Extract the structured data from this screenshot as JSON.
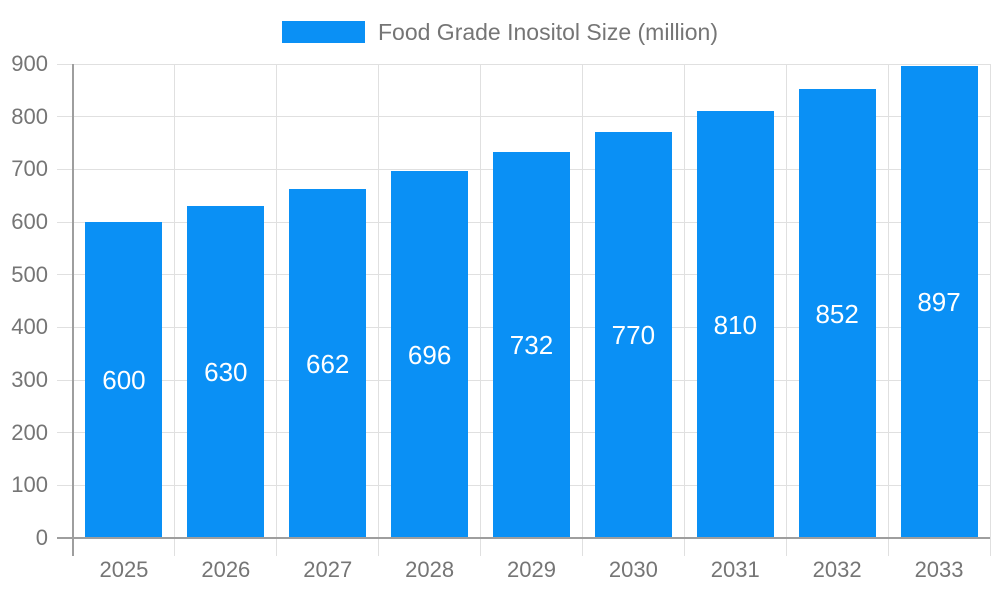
{
  "chart_data": {
    "type": "bar",
    "title": "",
    "legend_label": "Food Grade Inositol Size (million)",
    "legend_position": "top",
    "categories": [
      "2025",
      "2026",
      "2027",
      "2028",
      "2029",
      "2030",
      "2031",
      "2032",
      "2033"
    ],
    "values": [
      600,
      630,
      662,
      696,
      732,
      770,
      810,
      852,
      897
    ],
    "value_labels": [
      "600",
      "630",
      "662",
      "696",
      "732",
      "770",
      "810",
      "852",
      "897"
    ],
    "xlabel": "",
    "ylabel": "",
    "ylim": [
      0,
      900
    ],
    "ytick_step": 100,
    "ytick_labels": [
      "0",
      "100",
      "200",
      "300",
      "400",
      "500",
      "600",
      "700",
      "800",
      "900"
    ],
    "grid": true,
    "colors": {
      "bar": "#0a90f5",
      "value_label": "#ffffff",
      "axis_text": "#757575",
      "legend_text": "#757575",
      "gridline": "#e0e0e0",
      "axis_line": "#9e9e9e",
      "background": "#ffffff"
    }
  }
}
